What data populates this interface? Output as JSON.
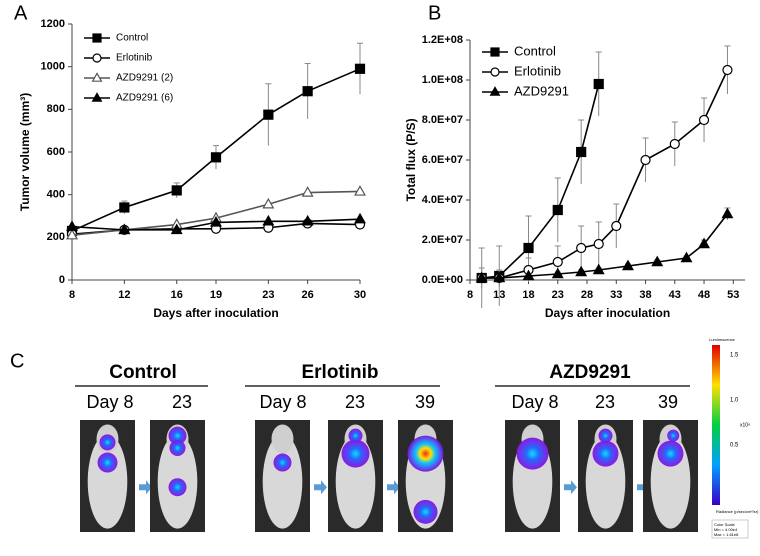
{
  "chart_data": [
    {
      "type": "line",
      "label": "A",
      "xlabel": "Days after inoculation",
      "ylabel": "Tumor volume (mm³)",
      "x": [
        8,
        12,
        16,
        19,
        23,
        26,
        30
      ],
      "xlim": [
        8,
        30
      ],
      "xticks": [
        8,
        12,
        16,
        19,
        23,
        26,
        30
      ],
      "ylim": [
        0,
        1200
      ],
      "yticks": [
        0,
        200,
        400,
        600,
        800,
        1000,
        1200
      ],
      "legend": "upper left",
      "series": [
        {
          "name": "Control",
          "color": "#000000",
          "marker": "square",
          "fill": "#000000",
          "values": [
            230,
            340,
            420,
            575,
            775,
            885,
            990
          ],
          "errors": [
            20,
            30,
            35,
            55,
            145,
            130,
            120
          ]
        },
        {
          "name": "Erlotinib",
          "color": "#000000",
          "marker": "circle",
          "fill": "#ffffff",
          "values": [
            215,
            235,
            240,
            240,
            245,
            265,
            260
          ]
        },
        {
          "name": "AZD9291 (2)",
          "color": "#555555",
          "marker": "triangle",
          "fill": "#ffffff",
          "values": [
            210,
            235,
            260,
            290,
            355,
            410,
            415
          ]
        },
        {
          "name": "AZD9291 (6)",
          "color": "#000000",
          "marker": "triangle",
          "fill": "#000000",
          "values": [
            250,
            235,
            235,
            270,
            275,
            275,
            285
          ]
        }
      ]
    },
    {
      "type": "line",
      "label": "B",
      "xlabel": "Days after inoculation",
      "ylabel": "Total flux (P/S)",
      "xlim": [
        8,
        55
      ],
      "xticks": [
        8,
        13,
        18,
        23,
        28,
        33,
        38,
        43,
        48,
        53
      ],
      "ylim": [
        0,
        120000000
      ],
      "yticks": [
        {
          "value": 0,
          "label": "0.0E+00"
        },
        {
          "value": 20000000,
          "label": "2.0E+07"
        },
        {
          "value": 40000000,
          "label": "4.0E+07"
        },
        {
          "value": 60000000,
          "label": "6.0E+07"
        },
        {
          "value": 80000000,
          "label": "8.0E+07"
        },
        {
          "value": 100000000,
          "label": "1.0E+08"
        },
        {
          "value": 120000000,
          "label": "1.2E+08"
        }
      ],
      "legend": "upper left",
      "series": [
        {
          "name": "Control",
          "color": "#000000",
          "marker": "square",
          "fill": "#000000",
          "x": [
            10,
            13,
            18,
            23,
            27,
            30
          ],
          "values": [
            1000000,
            2000000,
            16000000,
            35000000,
            64000000,
            98000000
          ],
          "errors": [
            15000000,
            15000000,
            16000000,
            16000000,
            16000000,
            16000000
          ]
        },
        {
          "name": "Erlotinib",
          "color": "#000000",
          "marker": "circle",
          "fill": "#ffffff",
          "x": [
            10,
            13,
            18,
            23,
            27,
            30,
            33,
            38,
            43,
            48,
            52
          ],
          "values": [
            1000000,
            1000000,
            5000000,
            9000000,
            16000000,
            18000000,
            27000000,
            60000000,
            68000000,
            80000000,
            105000000
          ],
          "errors": [
            5000000,
            4000000,
            6000000,
            8000000,
            11000000,
            11000000,
            11000000,
            11000000,
            11000000,
            11000000,
            12000000
          ]
        },
        {
          "name": "AZD9291",
          "color": "#000000",
          "marker": "triangle",
          "fill": "#000000",
          "x": [
            10,
            13,
            18,
            23,
            27,
            30,
            35,
            40,
            45,
            48,
            52
          ],
          "values": [
            1000000,
            1000000,
            2000000,
            3000000,
            4000000,
            5000000,
            7000000,
            9000000,
            11000000,
            18000000,
            33000000
          ],
          "errors": [
            1000000,
            1000000,
            1000000,
            1000000,
            1000000,
            1000000,
            1000000,
            1000000,
            1000000,
            2000000,
            3000000
          ]
        }
      ]
    }
  ],
  "panel_c": {
    "label": "C",
    "groups": [
      {
        "title": "Control",
        "days": [
          "Day 8",
          "23"
        ]
      },
      {
        "title": "Erlotinib",
        "days": [
          "Day 8",
          "23",
          "39"
        ]
      },
      {
        "title": "AZD9291",
        "days": [
          "Day 8",
          "23",
          "39"
        ]
      }
    ],
    "colorbar": {
      "title": "Luminescence",
      "ticks": [
        "1.5",
        "1.0",
        "0.5"
      ],
      "unit": "x10⁸",
      "note": "Radiance (p/sec/cm²/sr)",
      "scale": [
        "Color Scale",
        "Min = 4.00e4",
        "Max = 1.61e8"
      ]
    }
  }
}
